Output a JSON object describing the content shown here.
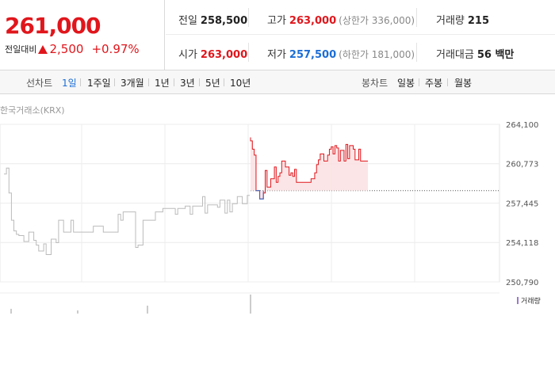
{
  "price": {
    "current": "261,000",
    "change_label": "전일대비",
    "change_value": "2,500",
    "change_rate": "+0.97%"
  },
  "stats": {
    "prev_close_label": "전일",
    "prev_close": "258,500",
    "high_label": "고가",
    "high": "263,000",
    "upper_limit": "(상한가 336,000)",
    "volume_label": "거래량",
    "volume": "215",
    "open_label": "시가",
    "open": "263,000",
    "low_label": "저가",
    "low": "257,500",
    "lower_limit": "(하한가 181,000)",
    "amount_label": "거래대금",
    "amount": "56 백만"
  },
  "tabs": {
    "line_label": "선차트",
    "line_items": [
      "1일",
      "1주일",
      "3개월",
      "1년",
      "3년",
      "5년",
      "10년"
    ],
    "active": "1일",
    "candle_label": "봉차트",
    "candle_items": [
      "일봉",
      "주봉",
      "월봉"
    ]
  },
  "chart": {
    "exchange": "한국거래소(KRX)",
    "y_ticks": [
      "264,100",
      "260,773",
      "257,445",
      "254,118",
      "250,790"
    ],
    "volume_legend": "거래량",
    "colors": {
      "up": "#e0161c",
      "down": "#1b6ed6",
      "prev": "#bbbbbb",
      "fill": "#fbe1e2"
    }
  },
  "chart_data": {
    "type": "line",
    "y_range": [
      250790,
      264100
    ],
    "y_ticks": [
      264100,
      260773,
      257445,
      254118,
      250790
    ],
    "reference": 258500,
    "previous_day": [
      [
        0,
        259900
      ],
      [
        1,
        259900
      ],
      [
        1,
        260400
      ],
      [
        2,
        260400
      ],
      [
        2,
        258300
      ],
      [
        3,
        258300
      ],
      [
        3,
        256000
      ],
      [
        4,
        256000
      ],
      [
        4,
        255100
      ],
      [
        5,
        255100
      ],
      [
        5,
        254800
      ],
      [
        6,
        254800
      ],
      [
        6,
        254700
      ],
      [
        7,
        254700
      ],
      [
        8,
        254700
      ],
      [
        8,
        254200
      ],
      [
        9,
        254200
      ],
      [
        10,
        254200
      ],
      [
        10,
        255000
      ],
      [
        11,
        255000
      ],
      [
        12,
        255000
      ],
      [
        12,
        254300
      ],
      [
        13,
        254300
      ],
      [
        13,
        253900
      ],
      [
        14,
        253900
      ],
      [
        14,
        253400
      ],
      [
        16,
        253400
      ],
      [
        16,
        254000
      ],
      [
        17,
        254000
      ],
      [
        17,
        253100
      ],
      [
        19,
        253100
      ],
      [
        19,
        254400
      ],
      [
        20,
        254400
      ],
      [
        21,
        254400
      ],
      [
        21,
        254100
      ],
      [
        22,
        254100
      ],
      [
        22,
        256000
      ],
      [
        23,
        256000
      ],
      [
        24,
        256000
      ],
      [
        24,
        255000
      ],
      [
        27,
        255000
      ],
      [
        27,
        256000
      ],
      [
        28,
        256000
      ],
      [
        28,
        255000
      ],
      [
        30,
        255000
      ],
      [
        30,
        255000
      ],
      [
        35,
        255000
      ],
      [
        36,
        255000
      ],
      [
        36,
        255500
      ],
      [
        40,
        255500
      ],
      [
        40,
        255000
      ],
      [
        45,
        255000
      ],
      [
        46,
        255000
      ],
      [
        46,
        256500
      ],
      [
        47,
        256500
      ],
      [
        47,
        256000
      ],
      [
        48,
        256000
      ],
      [
        48,
        256700
      ],
      [
        51,
        256700
      ],
      [
        51,
        256700
      ],
      [
        53,
        256700
      ],
      [
        53,
        253700
      ],
      [
        54,
        253700
      ],
      [
        54,
        253900
      ],
      [
        55,
        253900
      ],
      [
        56,
        253900
      ],
      [
        56,
        256000
      ],
      [
        60,
        256000
      ],
      [
        61,
        256000
      ],
      [
        61,
        256700
      ],
      [
        63,
        256700
      ],
      [
        64,
        256700
      ],
      [
        64,
        257000
      ],
      [
        68,
        257000
      ],
      [
        69,
        257000
      ],
      [
        69,
        256500
      ],
      [
        70,
        256500
      ],
      [
        70,
        257000
      ],
      [
        72,
        257000
      ],
      [
        73,
        257000
      ],
      [
        73,
        257200
      ],
      [
        74,
        257200
      ],
      [
        75,
        257200
      ],
      [
        75,
        256500
      ],
      [
        76,
        256500
      ],
      [
        76,
        257200
      ],
      [
        78,
        257200
      ],
      [
        80,
        257200
      ],
      [
        80,
        258000
      ],
      [
        81,
        258000
      ],
      [
        81,
        256600
      ],
      [
        82,
        256600
      ],
      [
        82,
        257300
      ],
      [
        86,
        257300
      ],
      [
        86,
        257100
      ],
      [
        87,
        257100
      ],
      [
        87,
        257700
      ],
      [
        88,
        257700
      ],
      [
        89,
        257700
      ],
      [
        89,
        256600
      ],
      [
        90,
        256600
      ],
      [
        90,
        257700
      ],
      [
        91,
        257700
      ],
      [
        91,
        256700
      ],
      [
        92,
        256700
      ],
      [
        92,
        257400
      ],
      [
        93,
        257400
      ],
      [
        94,
        257400
      ],
      [
        94,
        258000
      ],
      [
        96,
        258000
      ],
      [
        96,
        257400
      ],
      [
        98,
        257400
      ],
      [
        98,
        258100
      ],
      [
        99,
        258100
      ]
    ],
    "today": [
      [
        0,
        263000
      ],
      [
        0,
        262700
      ],
      [
        1,
        262700
      ],
      [
        1,
        262000
      ],
      [
        2,
        262000
      ],
      [
        2,
        261500
      ],
      [
        3,
        261500
      ],
      [
        3,
        258500
      ],
      [
        4,
        258500
      ],
      [
        5,
        258500
      ],
      [
        5,
        257800
      ],
      [
        7,
        257800
      ],
      [
        7,
        258300
      ],
      [
        8,
        258300
      ],
      [
        8,
        260200
      ],
      [
        9,
        260200
      ],
      [
        9,
        258800
      ],
      [
        10,
        258800
      ],
      [
        11,
        258800
      ],
      [
        11,
        259500
      ],
      [
        13,
        259500
      ],
      [
        13,
        260500
      ],
      [
        14,
        260500
      ],
      [
        14,
        259200
      ],
      [
        15,
        259200
      ],
      [
        15,
        259700
      ],
      [
        16,
        259700
      ],
      [
        16,
        260000
      ],
      [
        17,
        260000
      ],
      [
        17,
        261000
      ],
      [
        19,
        261000
      ],
      [
        19,
        260500
      ],
      [
        21,
        260500
      ],
      [
        21,
        259800
      ],
      [
        22,
        259800
      ],
      [
        22,
        260000
      ],
      [
        23,
        260000
      ],
      [
        23,
        259700
      ],
      [
        24,
        259700
      ],
      [
        24,
        260300
      ],
      [
        25,
        260300
      ],
      [
        25,
        259200
      ],
      [
        26,
        259200
      ],
      [
        30,
        259200
      ],
      [
        30,
        259200
      ],
      [
        33,
        259200
      ],
      [
        33,
        259500
      ],
      [
        35,
        259500
      ],
      [
        35,
        260000
      ],
      [
        36,
        260000
      ],
      [
        36,
        260700
      ],
      [
        37,
        260700
      ],
      [
        37,
        261100
      ],
      [
        38,
        261100
      ],
      [
        38,
        261600
      ],
      [
        40,
        261600
      ],
      [
        40,
        261000
      ],
      [
        42,
        261000
      ],
      [
        42,
        261500
      ],
      [
        43,
        261500
      ],
      [
        43,
        262000
      ],
      [
        44,
        262000
      ],
      [
        44,
        262200
      ],
      [
        45,
        262200
      ],
      [
        45,
        261600
      ],
      [
        46,
        261600
      ],
      [
        46,
        262300
      ],
      [
        47,
        262300
      ],
      [
        47,
        262100
      ],
      [
        48,
        262100
      ],
      [
        48,
        261000
      ],
      [
        49,
        261000
      ],
      [
        49,
        261900
      ],
      [
        50,
        261900
      ],
      [
        51,
        261900
      ],
      [
        51,
        261000
      ],
      [
        52,
        261000
      ],
      [
        52,
        262400
      ],
      [
        53,
        262400
      ],
      [
        53,
        261200
      ],
      [
        54,
        261200
      ],
      [
        54,
        262300
      ],
      [
        56,
        262300
      ],
      [
        56,
        262000
      ],
      [
        57,
        262000
      ],
      [
        57,
        261100
      ],
      [
        58,
        261100
      ],
      [
        59,
        261100
      ],
      [
        59,
        262000
      ],
      [
        60,
        262000
      ],
      [
        60,
        261000
      ],
      [
        64,
        261000
      ]
    ]
  }
}
